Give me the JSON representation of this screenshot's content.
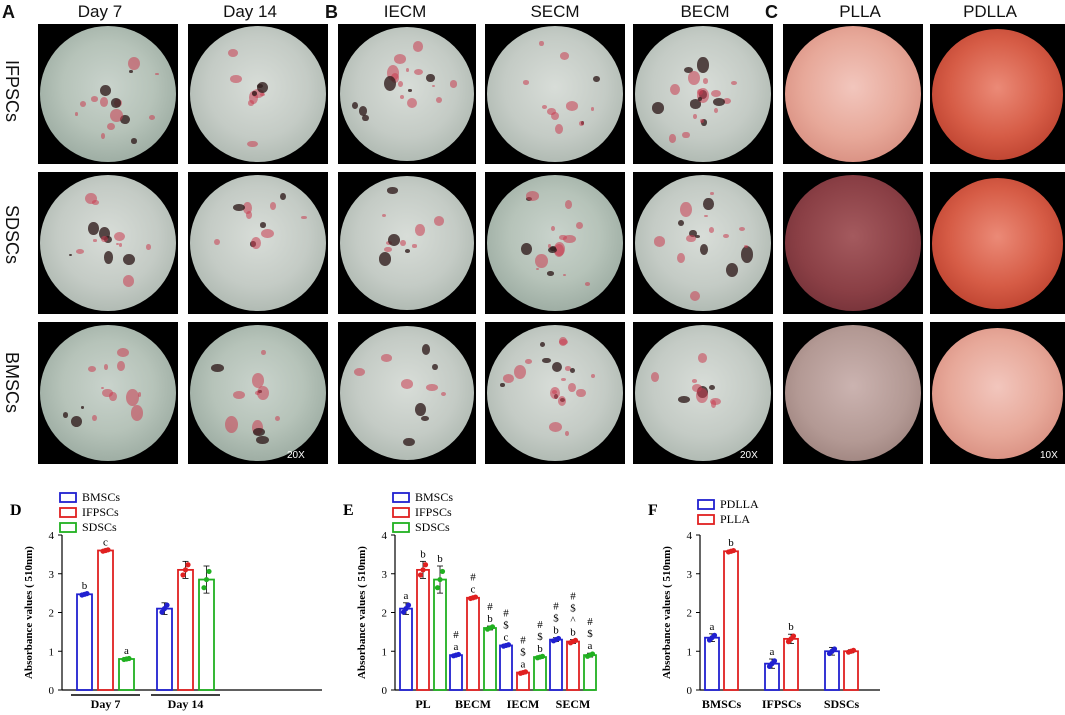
{
  "panels": {
    "A": {
      "letter": "A",
      "cols": [
        "Day 7",
        "Day 14"
      ],
      "mag": "20X"
    },
    "B": {
      "letter": "B",
      "cols": [
        "IECM",
        "SECM",
        "BECM"
      ],
      "mag": "20X"
    },
    "C": {
      "letter": "C",
      "cols": [
        "PLLA",
        "PDLLA"
      ],
      "mag": "10X"
    },
    "rows": [
      "IFPSCs",
      "SDSCs",
      "BMSCs"
    ]
  },
  "chart_data": [
    {
      "letter": "D",
      "type": "bar",
      "ylabel": "Absorbance values ( 510nm)",
      "ylim": [
        0,
        4
      ],
      "yticks": [
        "0",
        "1",
        "2",
        "3",
        "4"
      ],
      "categories": [
        "Day 7",
        "Day 14"
      ],
      "legend": [
        "BMSCs",
        "IFPSCs",
        "SDSCs"
      ],
      "colors": [
        "#2020d0",
        "#e02020",
        "#20b020"
      ],
      "series": [
        {
          "name": "BMSCs",
          "values": [
            2.47,
            2.1
          ],
          "err": [
            0.03,
            0.15
          ],
          "labels": [
            [
              "b"
            ],
            []
          ]
        },
        {
          "name": "IFPSCs",
          "values": [
            3.6,
            3.1
          ],
          "err": [
            0.03,
            0.22
          ],
          "labels": [
            [
              "c"
            ],
            []
          ]
        },
        {
          "name": "SDSCs",
          "values": [
            0.8,
            2.85
          ],
          "err": [
            0.02,
            0.35
          ],
          "labels": [
            [
              "a"
            ],
            []
          ]
        }
      ]
    },
    {
      "letter": "E",
      "type": "bar",
      "ylabel": "Absorbance values ( 510nm)",
      "ylim": [
        0,
        4
      ],
      "yticks": [
        "0",
        "1",
        "2",
        "3",
        "4"
      ],
      "categories": [
        "PL",
        "BECM",
        "IECM",
        "SECM"
      ],
      "legend": [
        "BMSCs",
        "IFPSCs",
        "SDSCs"
      ],
      "colors": [
        "#2020d0",
        "#e02020",
        "#20b020"
      ],
      "series": [
        {
          "name": "BMSCs",
          "values": [
            2.1,
            0.9,
            1.15,
            1.3
          ],
          "err": [
            0.15,
            0.03,
            0.03,
            0.05
          ],
          "labels": [
            [
              "a"
            ],
            [
              "a",
              "#"
            ],
            [
              "c",
              "$",
              "#"
            ],
            [
              "b",
              "$",
              "#"
            ]
          ]
        },
        {
          "name": "IFPSCs",
          "values": [
            3.1,
            2.38,
            0.45,
            1.25
          ],
          "err": [
            0.22,
            0.03,
            0.03,
            0.05
          ],
          "labels": [
            [
              "b"
            ],
            [
              "c",
              "#"
            ],
            [
              "a",
              "$",
              "#"
            ],
            [
              "b",
              "^",
              "$",
              "#"
            ]
          ]
        },
        {
          "name": "SDSCs",
          "values": [
            2.85,
            1.6,
            0.85,
            0.9
          ],
          "err": [
            0.35,
            0.05,
            0.03,
            0.05
          ],
          "labels": [
            [
              "b"
            ],
            [
              "b",
              "#"
            ],
            [
              "b",
              "$",
              "#"
            ],
            [
              "a",
              "$",
              "#"
            ]
          ]
        }
      ]
    },
    {
      "letter": "F",
      "type": "bar",
      "ylabel": "Absorbance values ( 510nm)",
      "ylim": [
        0,
        4
      ],
      "yticks": [
        "0",
        "1",
        "2",
        "3",
        "4"
      ],
      "categories": [
        "BMSCs",
        "IFPSCs",
        "SDSCs"
      ],
      "legend": [
        "PDLLA",
        "PLLA"
      ],
      "colors": [
        "#2020d0",
        "#e02020"
      ],
      "series": [
        {
          "name": "PDLLA",
          "values": [
            1.35,
            0.68,
            1.0
          ],
          "err": [
            0.1,
            0.12,
            0.1
          ],
          "labels": [
            [
              "a"
            ],
            [
              "a"
            ],
            []
          ]
        },
        {
          "name": "PLLA",
          "values": [
            3.58,
            1.32,
            1.0
          ],
          "err": [
            0.03,
            0.12,
            0.04
          ],
          "labels": [
            [
              "b"
            ],
            [
              "b"
            ],
            []
          ]
        }
      ]
    }
  ]
}
